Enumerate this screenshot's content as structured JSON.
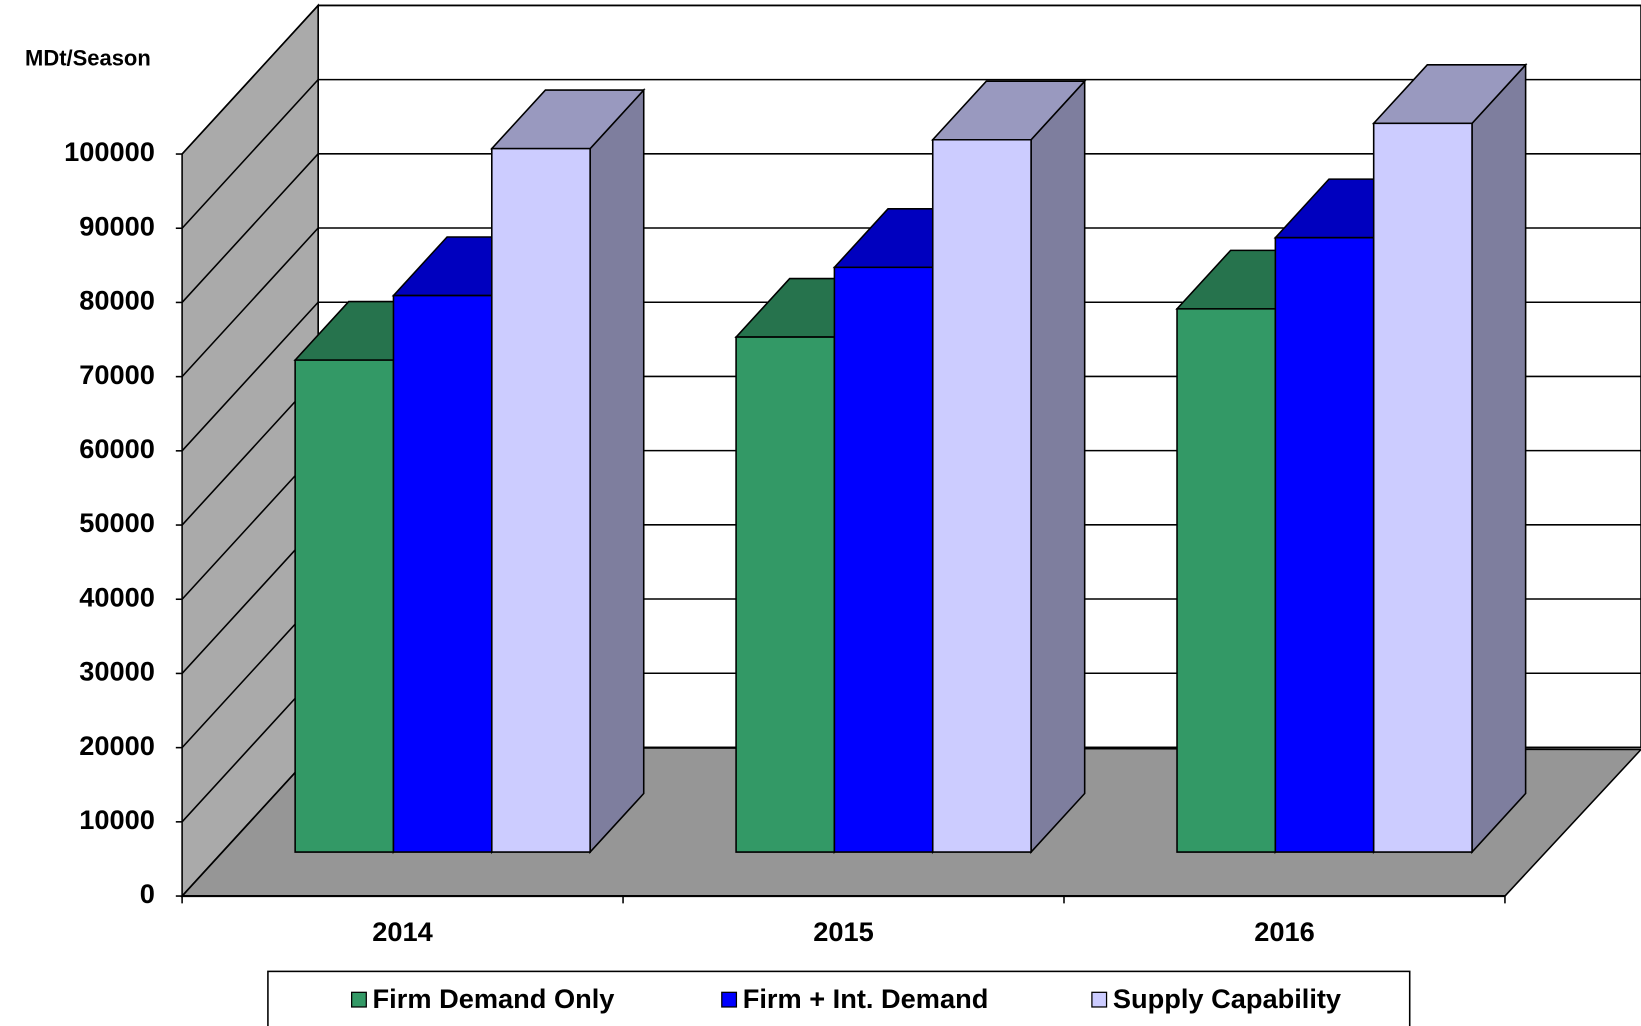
{
  "chart_data": {
    "type": "bar3d",
    "y_label": "MDt/Season",
    "categories": [
      "2014",
      "2015",
      "2016"
    ],
    "series": [
      {
        "name": "Firm Demand Only",
        "color": "#339966",
        "values": [
          66300,
          69400,
          73200
        ]
      },
      {
        "name": "Firm + Int. Demand",
        "color": "#0000ff",
        "values": [
          75000,
          78800,
          82800
        ]
      },
      {
        "name": "Supply Capability",
        "color": "#ccccff",
        "values": [
          94800,
          96000,
          98200
        ]
      }
    ],
    "ylim": [
      0,
      100000
    ],
    "yticks": [
      0,
      10000,
      20000,
      30000,
      40000,
      50000,
      60000,
      70000,
      80000,
      90000,
      100000
    ],
    "grid": true,
    "legend": "bottom"
  }
}
